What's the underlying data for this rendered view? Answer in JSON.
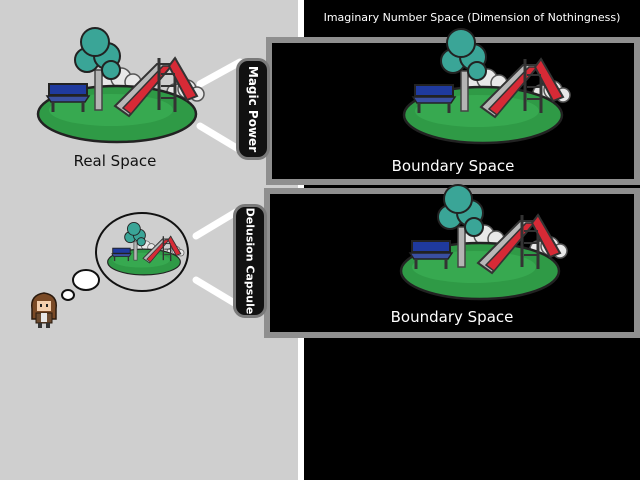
{
  "imaginary_title": "Imaginary Number Space (Dimension of Nothingness)",
  "real_space_label": "Real Space",
  "arrow_top_label": "Magic Power",
  "arrow_bottom_label": "Delusion Capsule",
  "boundary_top_label": "Boundary Space",
  "boundary_bottom_label": "Boundary Space",
  "colors": {
    "real_bg": "#cfcfcf",
    "imag_bg": "#000000",
    "box_border": "#8f8f8f",
    "grass": "#2f9a46",
    "slide": "#d62a36",
    "bench": "#1f3a9e",
    "tree": "#3aa597"
  },
  "icons": {
    "scene": "playground-icon",
    "character": "girl-character-icon",
    "thought": "thought-bubble-icon"
  }
}
